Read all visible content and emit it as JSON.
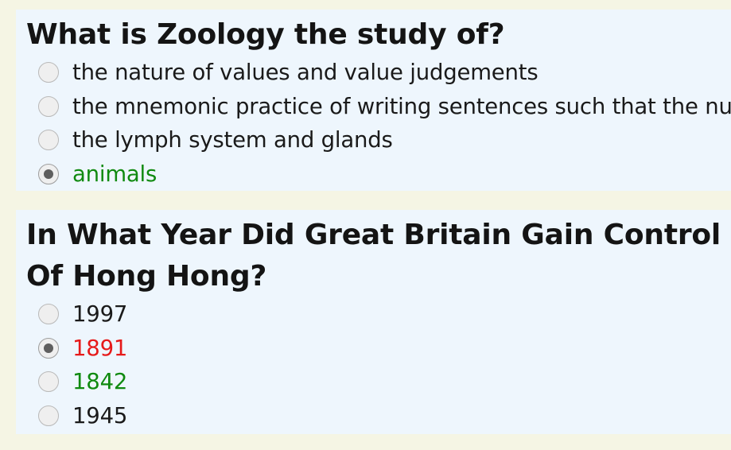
{
  "questions": [
    {
      "text": "What is Zoology the study of?",
      "options": [
        {
          "label": "the nature of values and value judgements",
          "selected": false,
          "state": "neutral"
        },
        {
          "label": "the mnemonic practice of writing sentences such that the nu",
          "selected": false,
          "state": "neutral"
        },
        {
          "label": "the lymph system and glands",
          "selected": false,
          "state": "neutral"
        },
        {
          "label": "animals",
          "selected": true,
          "state": "correct"
        }
      ]
    },
    {
      "text": "In What Year Did Great Britain Gain Control Of Hong Hong?",
      "options": [
        {
          "label": "1997",
          "selected": false,
          "state": "neutral"
        },
        {
          "label": "1891",
          "selected": true,
          "state": "wrong"
        },
        {
          "label": "1842",
          "selected": false,
          "state": "correct"
        },
        {
          "label": "1945",
          "selected": false,
          "state": "neutral"
        }
      ]
    }
  ],
  "colors": {
    "page_background": "#f5f5e4",
    "card_background": "#eef6fd",
    "correct": "#108a10",
    "wrong": "#e61a1a",
    "text": "#1a1a1a"
  }
}
